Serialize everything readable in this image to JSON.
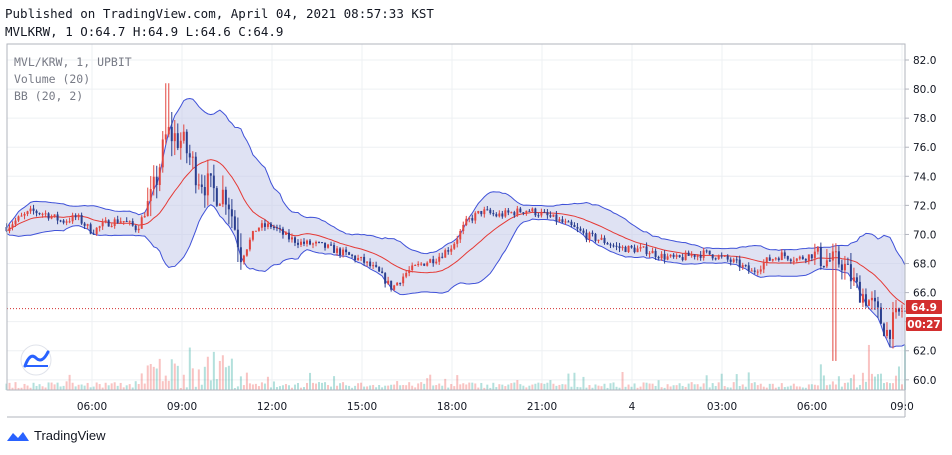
{
  "header": {
    "published": "Published on TradingView.com, April 04, 2021 08:57:33 KST",
    "ohlc": "MVLKRW, 1 O:64.7 H:64.9 L:64.6 C:64.9"
  },
  "legend": {
    "symbol": "MVL/KRW, 1, UPBIT",
    "volume": "Volume (20)",
    "bb": "BB (20, 2)"
  },
  "footer": {
    "brand": "TradingView"
  },
  "price_badge": {
    "value": "64.9",
    "countdown": "00:27"
  },
  "colors": {
    "up": "#ef5350",
    "down": "#26a69a",
    "candle_up": "#e2463f",
    "candle_down": "#2a3f8f",
    "band_line": "#3f51d8",
    "band_fill": "#c5cae9",
    "basis": "#e53935",
    "price_line": "#d32f2f",
    "grid": "#eef0f3",
    "axis": "#b2b5be"
  },
  "chart_data": {
    "type": "candlestick",
    "title": "MVL/KRW, 1, UPBIT",
    "interval": "1 minute",
    "xlabel": "",
    "ylabel": "",
    "y_ticks": [
      60.0,
      62.0,
      64.0,
      66.0,
      68.0,
      70.0,
      72.0,
      74.0,
      76.0,
      78.0,
      80.0,
      82.0
    ],
    "ylim": [
      59.3,
      83.1
    ],
    "x_ticks": [
      "06:00",
      "09:00",
      "12:00",
      "15:00",
      "18:00",
      "21:00",
      "4",
      "03:00",
      "06:00",
      "09:0"
    ],
    "last_price": 64.9,
    "indicators": [
      "Volume (20)",
      "BB (20, 2)"
    ],
    "price_path_hourly": {
      "times_hours_from_0600": [
        -3,
        -2.5,
        -2,
        -1.5,
        -1,
        -0.5,
        0,
        0.5,
        1,
        1.5,
        2,
        2.5,
        3,
        3.5,
        4,
        4.5,
        5,
        5.5,
        6,
        6.5,
        7,
        7.5,
        8,
        8.5,
        9,
        9.5,
        10,
        10.5,
        11,
        11.5,
        12,
        12.5,
        13,
        13.5,
        14,
        14.5,
        15,
        15.5,
        16,
        16.5,
        17,
        17.5,
        18,
        18.5,
        19,
        19.5,
        20,
        20.5,
        21,
        21.5,
        22,
        22.5,
        23,
        23.5,
        24,
        24.5,
        25,
        25.5,
        26,
        26.5,
        27,
        27.5,
        28,
        28.5,
        29,
        29.5,
        30,
        30.5,
        31,
        31.2
      ],
      "close": [
        70.3,
        71.0,
        71.6,
        71.4,
        70.9,
        71.2,
        70.2,
        70.8,
        71.0,
        70.4,
        72.5,
        77.0,
        76.4,
        74.2,
        73.0,
        72.8,
        68.5,
        70.5,
        70.6,
        69.8,
        69.4,
        69.3,
        69.0,
        68.6,
        68.2,
        67.5,
        66.3,
        67.4,
        68.0,
        68.4,
        69.2,
        70.9,
        71.6,
        71.3,
        71.5,
        71.7,
        71.4,
        71.0,
        70.5,
        69.9,
        69.6,
        69.1,
        69.0,
        68.9,
        68.5,
        68.3,
        68.6,
        68.7,
        68.4,
        68.0,
        67.4,
        68.2,
        68.6,
        68.3,
        68.6,
        68.2,
        68.1,
        66.3,
        65.2,
        63.3,
        64.8,
        63.6,
        63.5,
        65.4,
        65.0,
        64.9,
        64.9,
        64.9,
        64.9,
        64.9
      ]
    },
    "key_levels": {
      "high": 80.4,
      "high_time": "08:30",
      "low": 61.3,
      "low_time": "06:45 (Apr 4)"
    }
  }
}
